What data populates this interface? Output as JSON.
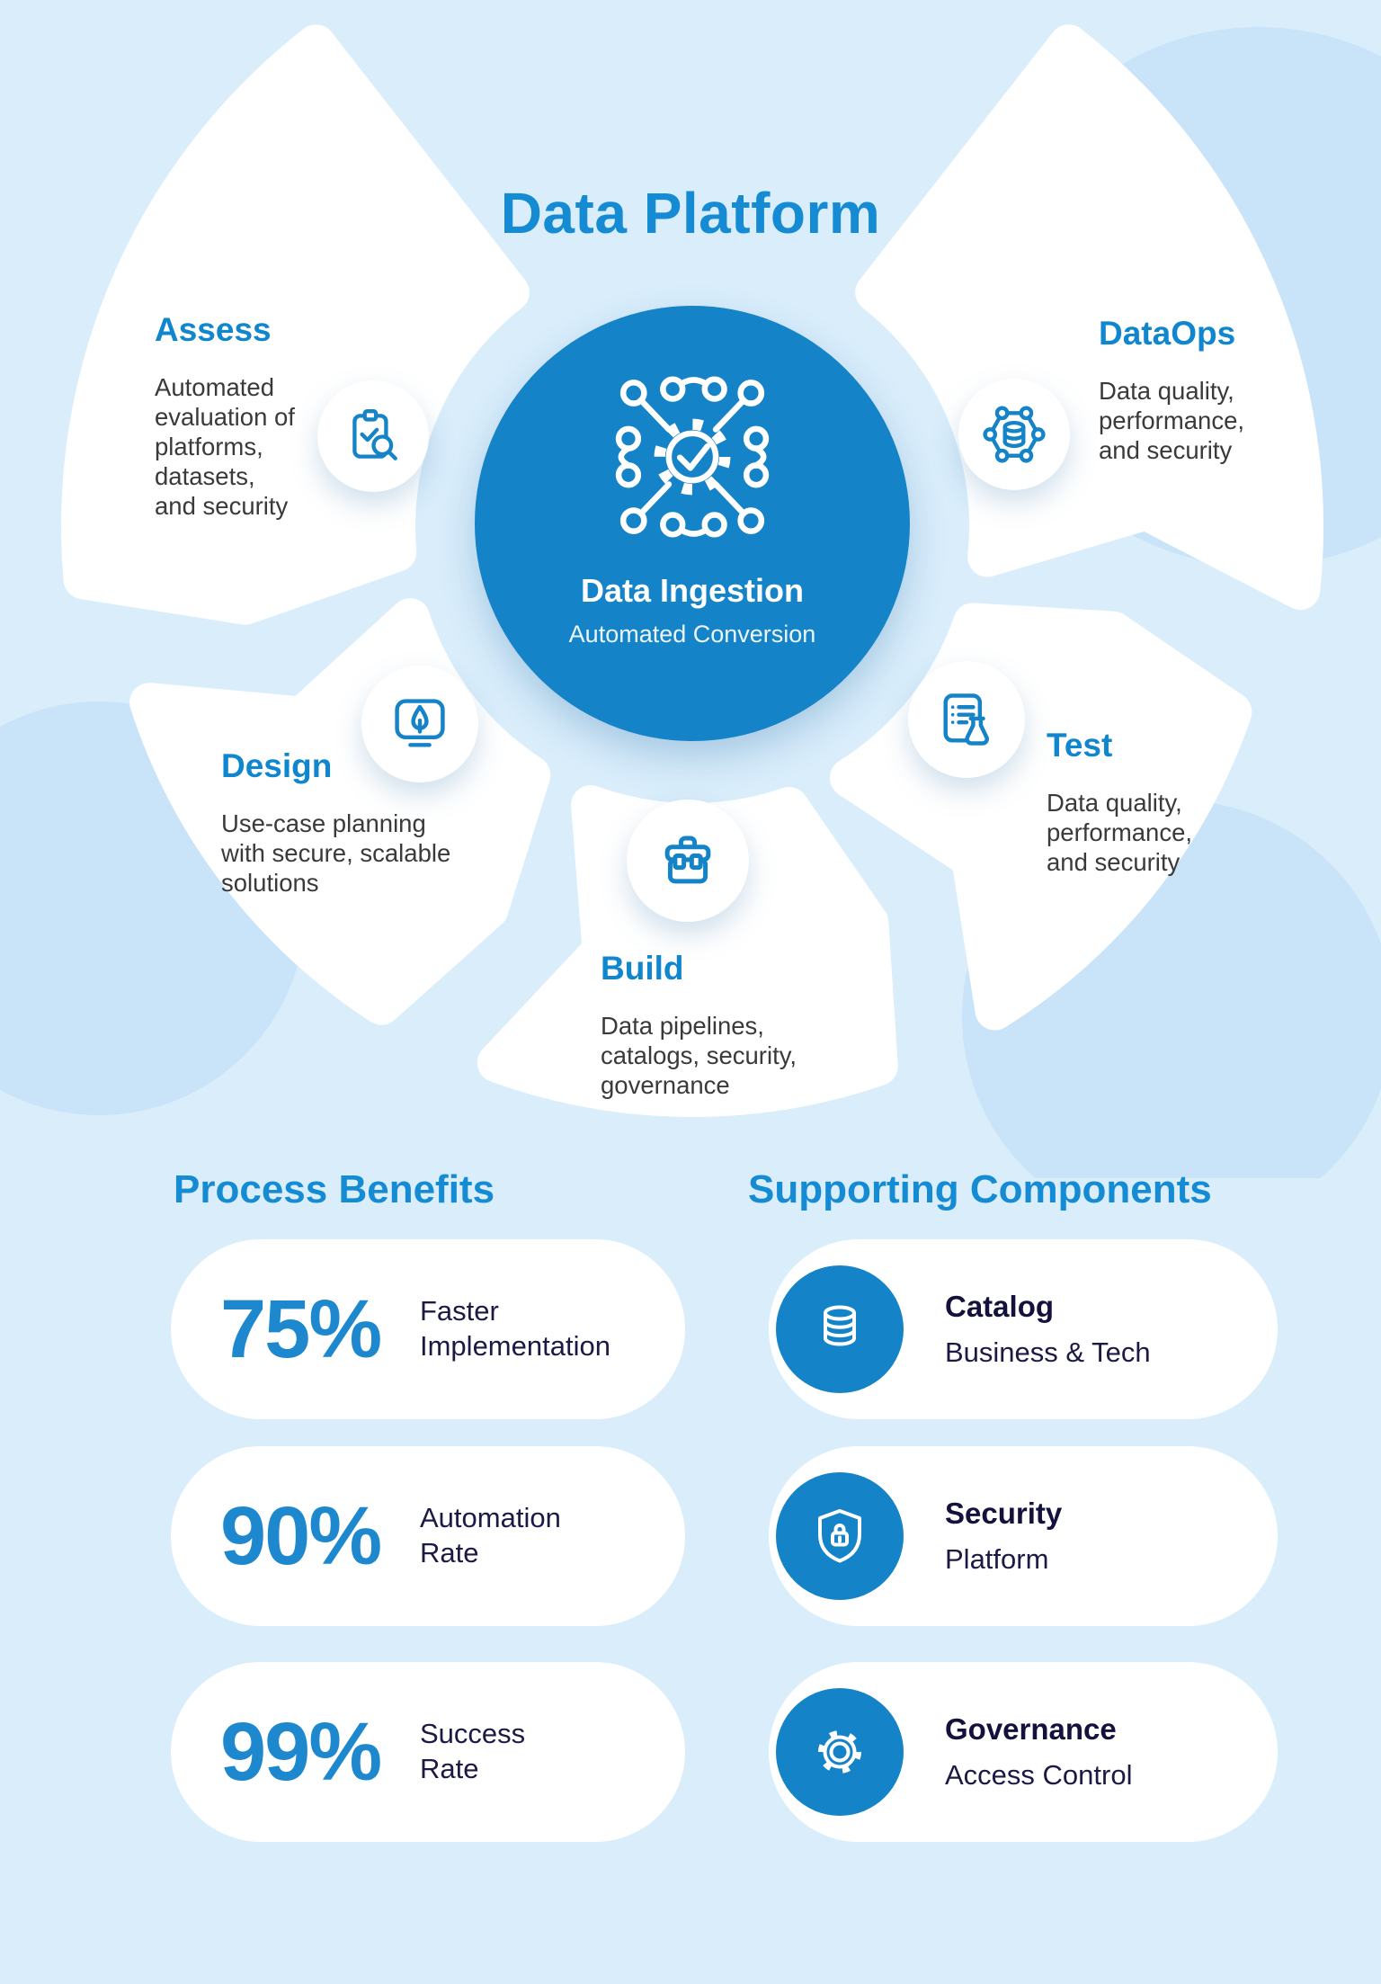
{
  "page_title": "Data Platform",
  "center": {
    "icon": "gear-network-icon",
    "title": "Data Ingestion",
    "subtitle": "Automated Conversion"
  },
  "stages": [
    {
      "name": "Assess",
      "description": "Automated\nevaluation of\nplatforms,\ndatasets,\nand security",
      "icon": "clipboard-check-search-icon"
    },
    {
      "name": "DataOps",
      "description": "Data quality,\nperformance,\nand security",
      "icon": "hexagon-database-icon"
    },
    {
      "name": "Design",
      "description": "Use-case planning\nwith secure, scalable\nsolutions",
      "icon": "monitor-pen-icon"
    },
    {
      "name": "Test",
      "description": "Data quality,\nperformance,\nand security",
      "icon": "checklist-flask-icon"
    },
    {
      "name": "Build",
      "description": "Data pipelines,\ncatalogs, security,\ngovernance",
      "icon": "toolbox-icon"
    }
  ],
  "process_benefits": {
    "title": "Process Benefits",
    "items": [
      {
        "value": "75%",
        "label": "Faster\nImplementation"
      },
      {
        "value": "90%",
        "label": "Automation\nRate"
      },
      {
        "value": "99%",
        "label": "Success\nRate"
      }
    ]
  },
  "supporting_components": {
    "title": "Supporting Components",
    "items": [
      {
        "title": "Catalog",
        "subtitle": "Business & Tech",
        "icon": "database-icon"
      },
      {
        "title": "Security",
        "subtitle": "Platform",
        "icon": "shield-lock-icon"
      },
      {
        "title": "Governance",
        "subtitle": "Access Control",
        "icon": "gear-icon"
      }
    ]
  },
  "colors": {
    "background": "#d9edfb",
    "deco_blue": "#c9e4f8",
    "primary_blue": "#1583c7",
    "heading_blue": "#148bd2",
    "stat_blue": "#1e88cf",
    "dark_navy": "#14123c",
    "body_text": "#3a3a3a",
    "white": "#ffffff"
  }
}
